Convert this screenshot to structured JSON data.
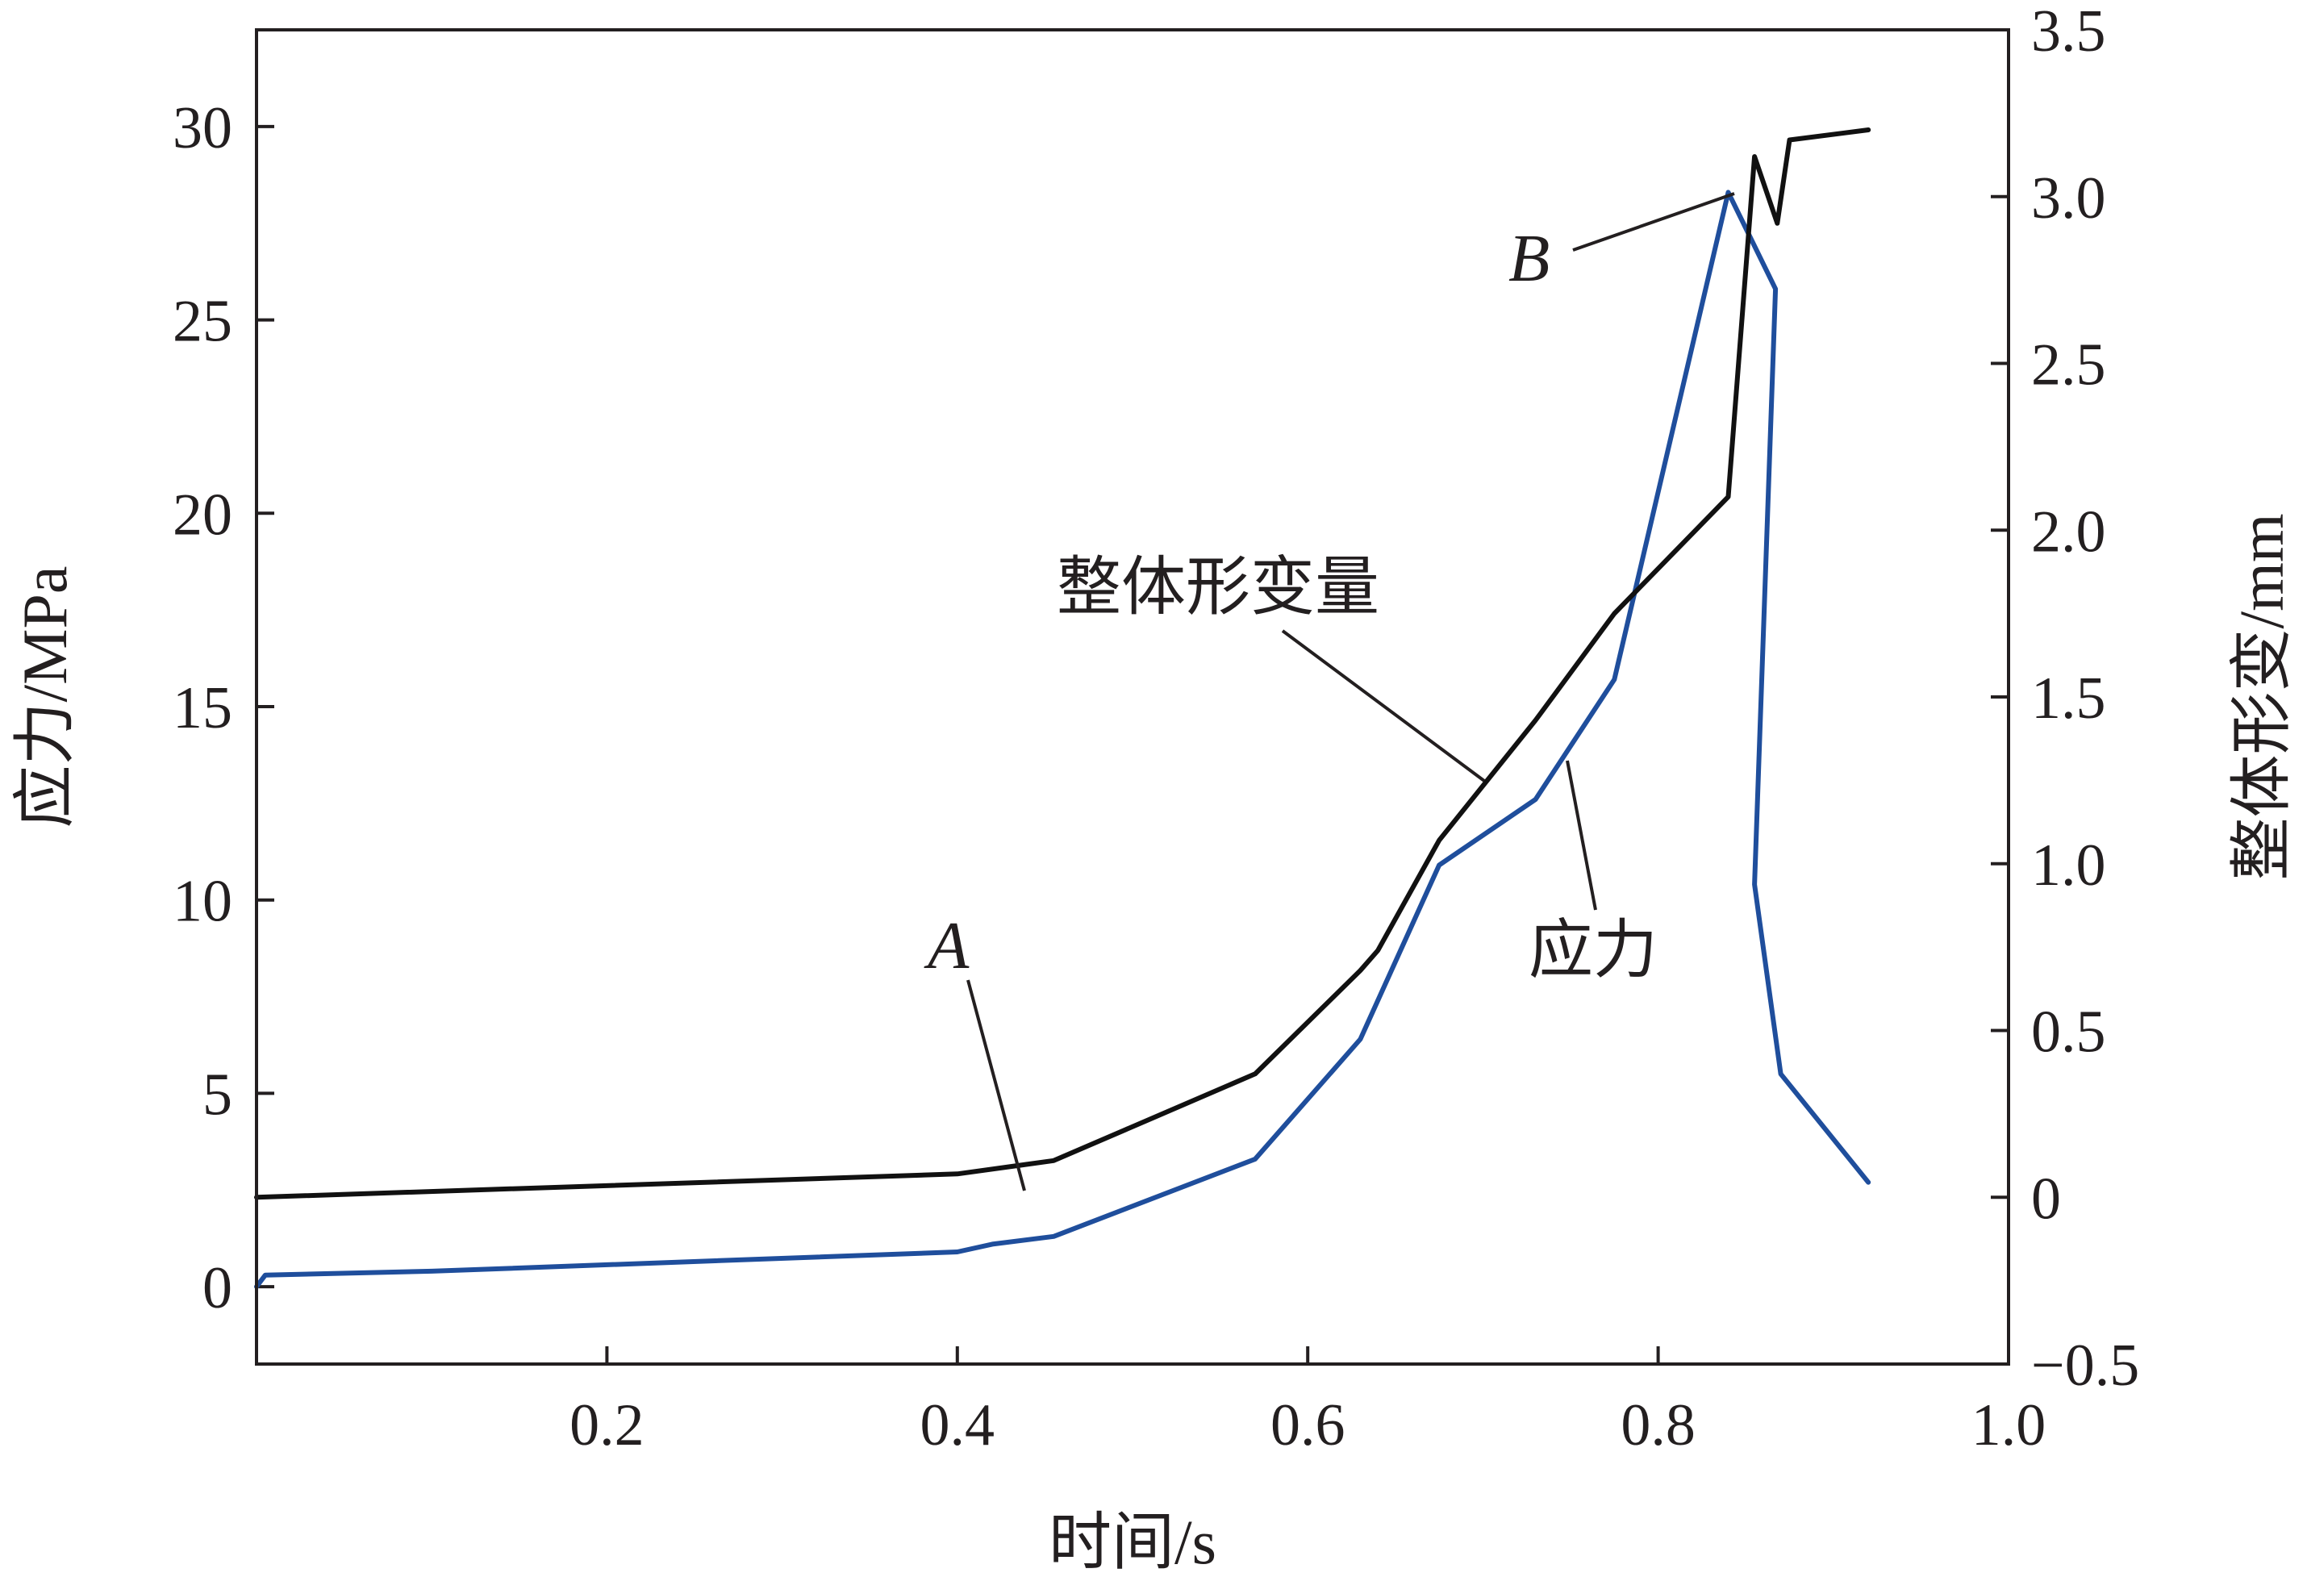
{
  "chart_data": {
    "type": "line",
    "xlabel": "时间/s",
    "ylabel": "应力/MPa",
    "y2label": "整体形变/mm",
    "xlim": [
      0.0,
      1.0
    ],
    "ylim": [
      -2,
      32.5
    ],
    "y2lim": [
      -0.5,
      3.5
    ],
    "x_ticks": [
      "0.2",
      "0.4",
      "0.6",
      "0.8",
      "1.0"
    ],
    "y_ticks": [
      "0",
      "5",
      "10",
      "15",
      "20",
      "25",
      "30"
    ],
    "y2_ticks": [
      "−0.5",
      "0",
      "0.5",
      "1.0",
      "1.5",
      "2.0",
      "2.5",
      "3.0",
      "3.5"
    ],
    "grid": false,
    "series": [
      {
        "axis": "left",
        "color": "#1f4e9c",
        "x": [
          0.0,
          0.005,
          0.1,
          0.4,
          0.42,
          0.455,
          0.57,
          0.63,
          0.675,
          0.73,
          0.775,
          0.84,
          0.867,
          0.855,
          0.87,
          0.92
        ],
        "y": [
          0.0,
          0.3,
          0.4,
          0.9,
          1.1,
          1.3,
          3.3,
          6.4,
          10.9,
          12.6,
          15.7,
          28.3,
          25.8,
          10.4,
          5.5,
          2.7
        ]
      },
      {
        "axis": "right",
        "color": "#111111",
        "x": [
          0.0,
          0.4,
          0.455,
          0.57,
          0.63,
          0.64,
          0.675,
          0.73,
          0.775,
          0.84,
          0.855,
          0.868,
          0.875,
          0.92
        ],
        "y": [
          0.0,
          0.07,
          0.11,
          0.37,
          0.68,
          0.74,
          1.07,
          1.43,
          1.75,
          2.1,
          3.12,
          2.92,
          3.17,
          3.2
        ]
      }
    ],
    "annotations": [
      {
        "text": "整体形变量",
        "style": "normal"
      },
      {
        "text": "应力",
        "style": "normal"
      },
      {
        "text": "A",
        "style": "italic"
      },
      {
        "text": "B",
        "style": "italic"
      }
    ]
  }
}
